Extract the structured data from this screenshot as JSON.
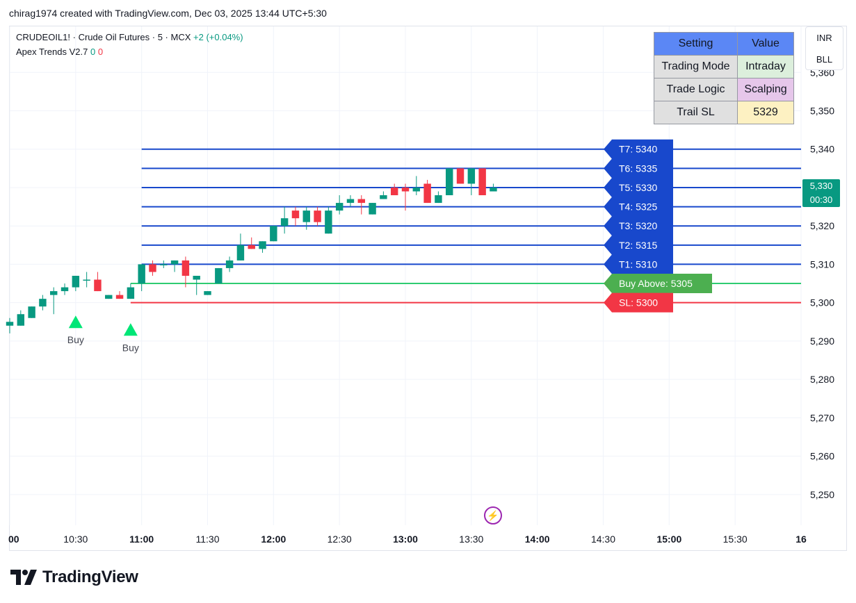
{
  "header": {
    "text": "chirag1974 created with TradingView.com, Dec 03, 2025 13:44 UTC+5:30"
  },
  "legend": {
    "symbol": "CRUDEOIL1! · Crude Oil Futures · 5 · MCX",
    "change": "+2 (+0.04%)",
    "indicator": "Apex Trends V2.7",
    "indicator_val1": "0",
    "indicator_val2": "0"
  },
  "settings_table": {
    "headers": [
      "Setting",
      "Value"
    ],
    "rows": [
      {
        "setting": "Trading Mode",
        "value": "Intraday",
        "color": "#dcefdc"
      },
      {
        "setting": "Trade Logic",
        "value": "Scalping",
        "color": "#e6c7ea"
      },
      {
        "setting": "Trail SL",
        "value": "5329",
        "color": "#fdf1c2"
      }
    ],
    "header_color": "#5b87f5",
    "label_color": "#e0e0e0"
  },
  "currency": {
    "line1": "INR",
    "line2": "BLL"
  },
  "last_price": {
    "value": "5,330",
    "countdown": "00:30",
    "color": "#089981"
  },
  "branding": {
    "name": "TradingView"
  },
  "chart_data": {
    "type": "candlestick",
    "timeframe": "5",
    "x_ticks": [
      "00",
      "10:30",
      "11:00",
      "11:30",
      "12:00",
      "12:30",
      "13:00",
      "13:30",
      "14:00",
      "14:30",
      "15:00",
      "15:30",
      "16"
    ],
    "x_tick_bold": [
      true,
      false,
      true,
      false,
      true,
      false,
      true,
      false,
      true,
      false,
      true,
      false,
      true
    ],
    "y_ticks": [
      "5,250",
      "5,260",
      "5,270",
      "5,280",
      "5,290",
      "5,300",
      "5,310",
      "5,320",
      "5,330",
      "5,340",
      "5,350",
      "5,360"
    ],
    "ylim": [
      5242,
      5372
    ],
    "xlim_minutes": [
      600,
      960
    ],
    "up_color": "#089981",
    "down_color": "#f23645",
    "candles": [
      {
        "t": 600,
        "o": 5294,
        "h": 5296,
        "l": 5292,
        "c": 5295
      },
      {
        "t": 605,
        "o": 5294,
        "h": 5298,
        "l": 5294,
        "c": 5297
      },
      {
        "t": 610,
        "o": 5296,
        "h": 5299,
        "l": 5296,
        "c": 5299
      },
      {
        "t": 615,
        "o": 5299,
        "h": 5302,
        "l": 5298,
        "c": 5301
      },
      {
        "t": 620,
        "o": 5302,
        "h": 5304,
        "l": 5297,
        "c": 5303
      },
      {
        "t": 625,
        "o": 5303,
        "h": 5305,
        "l": 5302,
        "c": 5304
      },
      {
        "t": 630,
        "o": 5304,
        "h": 5307,
        "l": 5303,
        "c": 5307
      },
      {
        "t": 635,
        "o": 5306,
        "h": 5308,
        "l": 5304,
        "c": 5306
      },
      {
        "t": 640,
        "o": 5306,
        "h": 5308,
        "l": 5303,
        "c": 5303
      },
      {
        "t": 645,
        "o": 5301,
        "h": 5302,
        "l": 5301,
        "c": 5302
      },
      {
        "t": 650,
        "o": 5302,
        "h": 5303,
        "l": 5301,
        "c": 5301
      },
      {
        "t": 655,
        "o": 5301,
        "h": 5305,
        "l": 5301,
        "c": 5304
      },
      {
        "t": 660,
        "o": 5305,
        "h": 5310,
        "l": 5303,
        "c": 5310
      },
      {
        "t": 665,
        "o": 5310,
        "h": 5311,
        "l": 5307,
        "c": 5308
      },
      {
        "t": 670,
        "o": 5310,
        "h": 5311,
        "l": 5309,
        "c": 5310
      },
      {
        "t": 675,
        "o": 5310,
        "h": 5311,
        "l": 5308,
        "c": 5311
      },
      {
        "t": 680,
        "o": 5311,
        "h": 5312,
        "l": 5304,
        "c": 5307
      },
      {
        "t": 685,
        "o": 5306,
        "h": 5307,
        "l": 5302,
        "c": 5307
      },
      {
        "t": 690,
        "o": 5302,
        "h": 5303,
        "l": 5302,
        "c": 5303
      },
      {
        "t": 695,
        "o": 5305,
        "h": 5309,
        "l": 5305,
        "c": 5309
      },
      {
        "t": 700,
        "o": 5309,
        "h": 5312,
        "l": 5308,
        "c": 5311
      },
      {
        "t": 705,
        "o": 5311,
        "h": 5318,
        "l": 5311,
        "c": 5315
      },
      {
        "t": 710,
        "o": 5315,
        "h": 5317,
        "l": 5314,
        "c": 5314
      },
      {
        "t": 715,
        "o": 5314,
        "h": 5316,
        "l": 5313,
        "c": 5316
      },
      {
        "t": 720,
        "o": 5316,
        "h": 5320,
        "l": 5316,
        "c": 5320
      },
      {
        "t": 725,
        "o": 5320,
        "h": 5325,
        "l": 5318,
        "c": 5322
      },
      {
        "t": 730,
        "o": 5324,
        "h": 5325,
        "l": 5320,
        "c": 5322
      },
      {
        "t": 735,
        "o": 5321,
        "h": 5325,
        "l": 5319,
        "c": 5324
      },
      {
        "t": 740,
        "o": 5324,
        "h": 5325,
        "l": 5320,
        "c": 5321
      },
      {
        "t": 745,
        "o": 5318,
        "h": 5325,
        "l": 5318,
        "c": 5324
      },
      {
        "t": 750,
        "o": 5324,
        "h": 5328,
        "l": 5323,
        "c": 5326
      },
      {
        "t": 755,
        "o": 5326,
        "h": 5328,
        "l": 5325,
        "c": 5327
      },
      {
        "t": 760,
        "o": 5327,
        "h": 5328,
        "l": 5323,
        "c": 5326
      },
      {
        "t": 765,
        "o": 5323,
        "h": 5326,
        "l": 5323,
        "c": 5326
      },
      {
        "t": 770,
        "o": 5327,
        "h": 5329,
        "l": 5327,
        "c": 5328
      },
      {
        "t": 775,
        "o": 5330,
        "h": 5331,
        "l": 5328,
        "c": 5328
      },
      {
        "t": 780,
        "o": 5330,
        "h": 5331,
        "l": 5324,
        "c": 5329
      },
      {
        "t": 785,
        "o": 5329,
        "h": 5333,
        "l": 5328,
        "c": 5330
      },
      {
        "t": 790,
        "o": 5331,
        "h": 5332,
        "l": 5326,
        "c": 5326
      },
      {
        "t": 795,
        "o": 5326,
        "h": 5329,
        "l": 5326,
        "c": 5328
      },
      {
        "t": 800,
        "o": 5328,
        "h": 5335,
        "l": 5328,
        "c": 5335
      },
      {
        "t": 805,
        "o": 5335,
        "h": 5335,
        "l": 5331,
        "c": 5331
      },
      {
        "t": 810,
        "o": 5331,
        "h": 5335,
        "l": 5328,
        "c": 5335
      },
      {
        "t": 815,
        "o": 5335,
        "h": 5335,
        "l": 5328,
        "c": 5328
      },
      {
        "t": 820,
        "o": 5329,
        "h": 5331,
        "l": 5329,
        "c": 5330
      }
    ],
    "signals": [
      {
        "t": 630,
        "price": 5297,
        "label": "Buy"
      },
      {
        "t": 655,
        "price": 5295,
        "label": "Buy"
      }
    ],
    "levels": [
      {
        "label": "T7: 5340",
        "value": 5340,
        "color": "#1848cc",
        "start_t": 660
      },
      {
        "label": "T6: 5335",
        "value": 5335,
        "color": "#1848cc",
        "start_t": 660
      },
      {
        "label": "T5: 5330",
        "value": 5330,
        "color": "#1848cc",
        "start_t": 660
      },
      {
        "label": "T4: 5325",
        "value": 5325,
        "color": "#1848cc",
        "start_t": 660
      },
      {
        "label": "T3: 5320",
        "value": 5320,
        "color": "#1848cc",
        "start_t": 660
      },
      {
        "label": "T2: 5315",
        "value": 5315,
        "color": "#1848cc",
        "start_t": 660
      },
      {
        "label": "T1: 5310",
        "value": 5310,
        "color": "#1848cc",
        "start_t": 660
      },
      {
        "label": "Buy Above: 5305",
        "value": 5305,
        "color": "#4caf50",
        "start_t": 655,
        "line_color": "#2ecc71"
      },
      {
        "label": "SL: 5300",
        "value": 5300,
        "color": "#f23645",
        "start_t": 655,
        "line_color": "#f23645"
      }
    ],
    "grid": true
  }
}
